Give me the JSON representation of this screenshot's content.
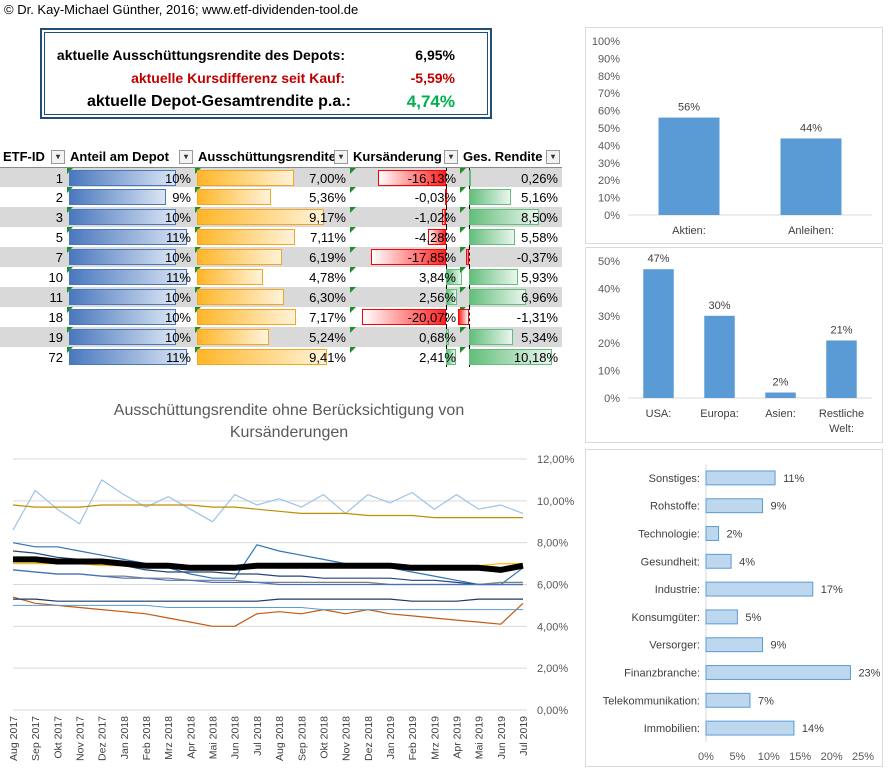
{
  "copyright": "© Dr. Kay-Michael Günther, 2016; www.etf-dividenden-tool.de",
  "summary": {
    "dist_label": "aktuelle Ausschüttungsrendite des Depots:",
    "dist_value": "6,95%",
    "diff_label": "aktuelle Kursdifferenz seit Kauf:",
    "diff_value": "-5,59%",
    "total_label": "aktuelle Depot-Gesamtrendite p.a.:",
    "total_value": "4,74%",
    "colors": {
      "negative": "#c00000",
      "positive": "#00b050",
      "border": "#1f4e79"
    }
  },
  "table": {
    "headers": [
      "ETF-ID",
      "Anteil am Depot",
      "Ausschüttungsrendite",
      "Kursänderung",
      "Ges. Rendite"
    ],
    "rows": [
      {
        "id": "1",
        "share": "10%",
        "share_v": 10,
        "dist": "7,00%",
        "dist_v": 7.0,
        "change": "-16,13%",
        "change_v": -16.13,
        "total": "0,26%",
        "total_v": 0.26
      },
      {
        "id": "2",
        "share": "9%",
        "share_v": 9,
        "dist": "5,36%",
        "dist_v": 5.36,
        "change": "-0,03%",
        "change_v": -0.03,
        "total": "5,16%",
        "total_v": 5.16
      },
      {
        "id": "3",
        "share": "10%",
        "share_v": 10,
        "dist": "9,17%",
        "dist_v": 9.17,
        "change": "-1,02%",
        "change_v": -1.02,
        "total": "8,50%",
        "total_v": 8.5
      },
      {
        "id": "5",
        "share": "11%",
        "share_v": 11,
        "dist": "7,11%",
        "dist_v": 7.11,
        "change": "-4,28%",
        "change_v": -4.28,
        "total": "5,58%",
        "total_v": 5.58
      },
      {
        "id": "7",
        "share": "10%",
        "share_v": 10,
        "dist": "6,19%",
        "dist_v": 6.19,
        "change": "-17,85%",
        "change_v": -17.85,
        "total": "-0,37%",
        "total_v": -0.37
      },
      {
        "id": "10",
        "share": "11%",
        "share_v": 11,
        "dist": "4,78%",
        "dist_v": 4.78,
        "change": "3,84%",
        "change_v": 3.84,
        "total": "5,93%",
        "total_v": 5.93
      },
      {
        "id": "11",
        "share": "10%",
        "share_v": 10,
        "dist": "6,30%",
        "dist_v": 6.3,
        "change": "2,56%",
        "change_v": 2.56,
        "total": "6,96%",
        "total_v": 6.96
      },
      {
        "id": "18",
        "share": "10%",
        "share_v": 10,
        "dist": "7,17%",
        "dist_v": 7.17,
        "change": "-20,07%",
        "change_v": -20.07,
        "total": "-1,31%",
        "total_v": -1.31
      },
      {
        "id": "19",
        "share": "10%",
        "share_v": 10,
        "dist": "5,24%",
        "dist_v": 5.24,
        "change": "0,68%",
        "change_v": 0.68,
        "total": "5,34%",
        "total_v": 5.34
      },
      {
        "id": "72",
        "share": "11%",
        "share_v": 11,
        "dist": "9,41%",
        "dist_v": 9.41,
        "change": "2,41%",
        "change_v": 2.41,
        "total": "10,18%",
        "total_v": 10.18
      }
    ]
  },
  "chart_data": [
    {
      "type": "bar",
      "categories": [
        "Aktien:",
        "Anleihen:"
      ],
      "values": [
        56,
        44
      ],
      "labels": [
        "56%",
        "44%"
      ],
      "yticks": [
        "0%",
        "10%",
        "20%",
        "30%",
        "40%",
        "50%",
        "60%",
        "70%",
        "80%",
        "90%",
        "100%"
      ],
      "ylim": [
        0,
        100
      ],
      "color": "#5b9bd5"
    },
    {
      "type": "bar",
      "categories": [
        "USA:",
        "Europa:",
        "Asien:",
        "Restliche Welt:"
      ],
      "values": [
        47,
        30,
        2,
        21
      ],
      "labels": [
        "47%",
        "30%",
        "2%",
        "21%"
      ],
      "yticks": [
        "0%",
        "10%",
        "20%",
        "30%",
        "40%",
        "50%"
      ],
      "ylim": [
        0,
        50
      ],
      "color": "#5b9bd5"
    },
    {
      "type": "bar",
      "orientation": "horizontal",
      "categories": [
        "Sonstiges:",
        "Rohstoffe:",
        "Technologie:",
        "Gesundheit:",
        "Industrie:",
        "Konsumgüter:",
        "Versorger:",
        "Finanzbranche:",
        "Telekommunikation:",
        "Immobilien:"
      ],
      "values": [
        11,
        9,
        2,
        4,
        17,
        5,
        9,
        23,
        7,
        14
      ],
      "labels": [
        "11%",
        "9%",
        "2%",
        "4%",
        "17%",
        "5%",
        "9%",
        "23%",
        "7%",
        "14%"
      ],
      "xticks": [
        "0%",
        "5%",
        "10%",
        "15%",
        "20%",
        "25%"
      ],
      "xlim": [
        0,
        25
      ],
      "color": "#bdd7ee"
    },
    {
      "type": "line",
      "title": "Ausschüttungsrendite ohne Berücksichtigung von Kursänderungen",
      "x": [
        "Aug 2017",
        "Sep 2017",
        "Okt 2017",
        "Nov 2017",
        "Dez 2017",
        "Jan 2018",
        "Feb 2018",
        "Mrz 2018",
        "Apr 2018",
        "Mai 2018",
        "Jun 2018",
        "Jul 2018",
        "Aug 2018",
        "Sep 2018",
        "Okt 2018",
        "Nov 2018",
        "Dez 2018",
        "Jan 2019",
        "Feb 2019",
        "Mrz 2019",
        "Apr 2019",
        "Mai 2019",
        "Jun 2019",
        "Jul 2019"
      ],
      "yticks": [
        "0,00%",
        "2,00%",
        "4,00%",
        "6,00%",
        "8,00%",
        "10,00%",
        "12,00%"
      ],
      "ylim": [
        0,
        12
      ],
      "series": [
        {
          "color": "#9dc3e6",
          "width": 1.2,
          "values": [
            8.6,
            10.5,
            9.6,
            8.9,
            11.0,
            10.3,
            9.7,
            10.2,
            9.6,
            9.0,
            10.3,
            9.8,
            10.1,
            9.7,
            10.3,
            9.4,
            10.3,
            9.9,
            10.4,
            9.6,
            10.3,
            9.6,
            9.8,
            9.4
          ]
        },
        {
          "color": "#bf8f00",
          "width": 1.2,
          "values": [
            9.8,
            9.7,
            9.7,
            9.7,
            9.8,
            9.8,
            9.8,
            9.8,
            9.8,
            9.7,
            9.7,
            9.6,
            9.5,
            9.4,
            9.4,
            9.4,
            9.3,
            9.3,
            9.3,
            9.2,
            9.2,
            9.2,
            9.2,
            9.2
          ]
        },
        {
          "color": "#2e75b6",
          "width": 1.2,
          "values": [
            8.0,
            7.8,
            7.8,
            7.6,
            7.4,
            7.2,
            7.0,
            6.8,
            6.5,
            6.3,
            6.3,
            7.9,
            7.6,
            7.4,
            7.2,
            7.0,
            6.9,
            6.8,
            6.6,
            6.4,
            6.2,
            6.0,
            6.0,
            6.8
          ]
        },
        {
          "color": "#ffc000",
          "width": 1.2,
          "values": [
            7.0,
            7.0,
            7.0,
            7.0,
            6.9,
            6.9,
            6.9,
            6.9,
            6.9,
            6.8,
            6.8,
            6.8,
            6.8,
            6.8,
            6.8,
            6.8,
            6.8,
            6.8,
            6.8,
            6.8,
            6.8,
            6.9,
            7.0,
            7.0
          ]
        },
        {
          "color": "#264478",
          "width": 1.2,
          "values": [
            7.6,
            7.5,
            7.3,
            7.2,
            7.0,
            6.9,
            6.7,
            6.6,
            6.6,
            6.6,
            6.5,
            6.5,
            6.4,
            6.4,
            6.3,
            6.3,
            6.3,
            6.3,
            6.2,
            6.2,
            6.1,
            6.0,
            6.0,
            6.0
          ]
        },
        {
          "color": "#7f7f7f",
          "width": 1.2,
          "values": [
            6.7,
            6.6,
            6.5,
            6.5,
            6.4,
            6.4,
            6.3,
            6.3,
            6.2,
            6.2,
            6.2,
            6.1,
            6.1,
            6.1,
            6.1,
            6.1,
            6.1,
            6.0,
            6.0,
            6.0,
            6.0,
            6.0,
            6.1,
            6.1
          ]
        },
        {
          "color": "#4472c4",
          "width": 1.2,
          "values": [
            6.7,
            6.6,
            6.5,
            6.5,
            6.4,
            6.3,
            6.3,
            6.2,
            6.2,
            6.1,
            6.1,
            6.1,
            6.0,
            6.0,
            6.0,
            6.0,
            6.0,
            6.0,
            6.0,
            6.0,
            6.0,
            6.0,
            6.0,
            6.0
          ]
        },
        {
          "color": "#c55a11",
          "width": 1.2,
          "values": [
            5.4,
            5.1,
            5.0,
            4.9,
            4.8,
            4.7,
            4.6,
            4.4,
            4.2,
            4.0,
            4.0,
            4.6,
            4.7,
            4.6,
            4.8,
            4.6,
            4.8,
            4.6,
            4.5,
            4.4,
            4.3,
            4.2,
            4.1,
            5.1
          ]
        },
        {
          "color": "#1f3864",
          "width": 1.2,
          "values": [
            5.3,
            5.3,
            5.2,
            5.2,
            5.2,
            5.2,
            5.2,
            5.2,
            5.2,
            5.2,
            5.2,
            5.2,
            5.3,
            5.3,
            5.3,
            5.3,
            5.3,
            5.3,
            5.2,
            5.2,
            5.2,
            5.3,
            5.3,
            5.3
          ]
        },
        {
          "color": "#5b9bd5",
          "width": 1.0,
          "values": [
            5.0,
            5.0,
            5.0,
            5.0,
            5.0,
            5.0,
            5.0,
            4.9,
            4.9,
            4.9,
            4.9,
            4.9,
            4.9,
            4.9,
            4.8,
            4.8,
            4.8,
            4.8,
            4.8,
            4.8,
            4.8,
            4.8,
            4.8,
            4.8
          ]
        },
        {
          "color": "#000000",
          "width": 6.0,
          "values": [
            7.2,
            7.2,
            7.1,
            7.1,
            7.1,
            7.0,
            6.9,
            6.9,
            6.8,
            6.8,
            6.8,
            6.9,
            6.9,
            6.9,
            6.9,
            6.9,
            6.9,
            6.9,
            6.8,
            6.8,
            6.8,
            6.8,
            6.7,
            6.9
          ]
        }
      ]
    }
  ]
}
